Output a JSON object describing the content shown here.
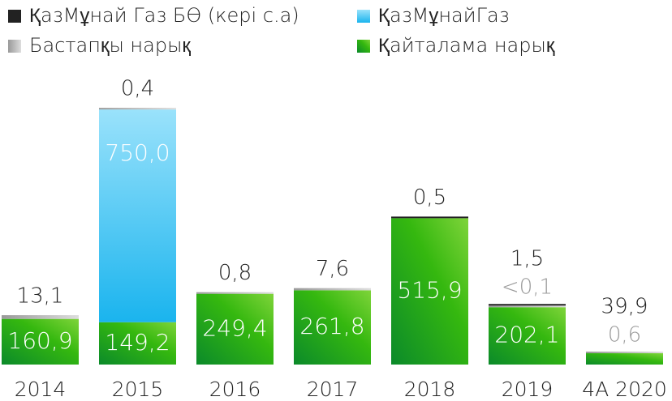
{
  "chart_data": {
    "type": "stacked_bar",
    "categories": [
      "2014",
      "2015",
      "2016",
      "2017",
      "2018",
      "2019",
      "4А 2020"
    ],
    "series": [
      {
        "name": "ҚазМұнай Газ БӨ (кері с.а)",
        "color": "#222222",
        "values": [
          null,
          null,
          null,
          null,
          0.5,
          1.5,
          null
        ],
        "value_labels": [
          null,
          null,
          null,
          null,
          "0,5",
          "1,5",
          null
        ]
      },
      {
        "name": "ҚазМұнайГаз",
        "color": "#3cc3f2",
        "values": [
          null,
          750.0,
          null,
          null,
          null,
          null,
          null
        ],
        "value_labels": [
          null,
          "750,0",
          null,
          null,
          null,
          null,
          null
        ]
      },
      {
        "name": "Бастапқы нарық",
        "color": "#b0b0b0",
        "values": [
          13.1,
          0.4,
          0.8,
          7.6,
          null,
          0.1,
          0.6
        ],
        "value_labels": [
          "13,1",
          "0,4",
          "0,8",
          "7,6",
          null,
          "<0,1",
          "0,6"
        ]
      },
      {
        "name": "Қайталама нарық",
        "color": "#2fb012",
        "values": [
          160.9,
          149.2,
          249.4,
          261.8,
          515.9,
          202.1,
          39.9
        ],
        "value_labels": [
          "160,9",
          "149,2",
          "249,4",
          "261,8",
          "515,9",
          "202,1",
          "39,9"
        ]
      }
    ]
  }
}
